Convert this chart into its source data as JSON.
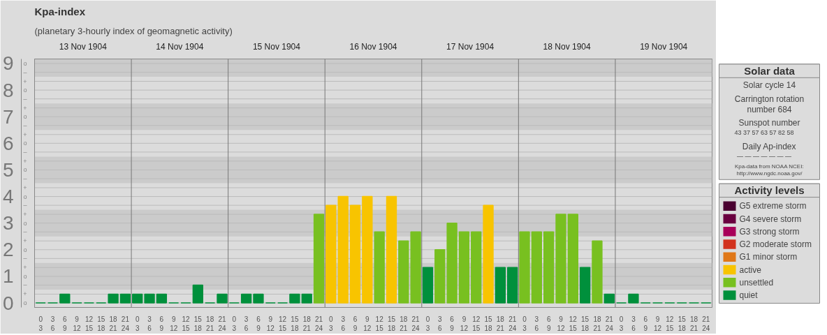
{
  "chart_data": [
    {
      "type": "bar",
      "title": "Kpa-index",
      "subtitle": "(planetary 3-hourly index of geomagnetic activity)",
      "categories": [
        "0\n3",
        "3\n6",
        "6\n9",
        "9\n12",
        "12\n15",
        "15\n18",
        "18\n21",
        "21\n24",
        "0\n3",
        "3\n6",
        "6\n9",
        "9\n12",
        "12\n15",
        "15\n18",
        "18\n21",
        "21\n24",
        "0\n3",
        "3\n6",
        "6\n9",
        "9\n12",
        "12\n15",
        "15\n18",
        "18\n21",
        "21\n24",
        "0\n3",
        "3\n6",
        "6\n9",
        "9\n12",
        "12\n15",
        "15\n18",
        "18\n21",
        "21\n24",
        "0\n3",
        "3\n6",
        "6\n9",
        "9\n12",
        "12\n15",
        "15\n18",
        "18\n21",
        "21\n24",
        "0\n3",
        "3\n6",
        "6\n9",
        "9\n12",
        "12\n15",
        "15\n18",
        "18\n21",
        "21\n24",
        "0\n3",
        "3\n6",
        "6\n9",
        "9\n12",
        "12\n15",
        "15\n18",
        "18\n21",
        "21\n24"
      ],
      "annotations": [
        "13 Nov 1904",
        "14 Nov 1904",
        "15 Nov 1904",
        "16 Nov 1904",
        "17 Nov 1904",
        "18 Nov 1904",
        "19 Nov 1904"
      ],
      "ref_lines": [
        {
          "axis": "y",
          "value": 0,
          "label": "o"
        },
        {
          "axis": "y",
          "value": 0.33,
          "label": "+"
        },
        {
          "axis": "y",
          "value": 0.67,
          "label": "–"
        },
        {
          "axis": "y",
          "value": 1,
          "label": "o"
        },
        {
          "axis": "y",
          "value": 1.33,
          "label": "+"
        },
        {
          "axis": "y",
          "value": 1.67,
          "label": "–"
        },
        {
          "axis": "y",
          "value": 2,
          "label": "o"
        },
        {
          "axis": "y",
          "value": 2.33,
          "label": "+"
        },
        {
          "axis": "y",
          "value": 2.67,
          "label": "–"
        },
        {
          "axis": "y",
          "value": 3,
          "label": "o"
        },
        {
          "axis": "y",
          "value": 3.33,
          "label": "+"
        },
        {
          "axis": "y",
          "value": 3.67,
          "label": "–"
        },
        {
          "axis": "y",
          "value": 4,
          "label": "o"
        },
        {
          "axis": "y",
          "value": 4.33,
          "label": "+"
        },
        {
          "axis": "y",
          "value": 4.67,
          "label": "–"
        },
        {
          "axis": "y",
          "value": 5,
          "label": "o"
        },
        {
          "axis": "y",
          "value": 5.33,
          "label": "+"
        },
        {
          "axis": "y",
          "value": 5.67,
          "label": "–"
        },
        {
          "axis": "y",
          "value": 6,
          "label": "o"
        },
        {
          "axis": "y",
          "value": 6.33,
          "label": "+"
        },
        {
          "axis": "y",
          "value": 6.67,
          "label": "–"
        },
        {
          "axis": "y",
          "value": 7,
          "label": "o"
        },
        {
          "axis": "y",
          "value": 7.33,
          "label": "+"
        },
        {
          "axis": "y",
          "value": 7.67,
          "label": "–"
        },
        {
          "axis": "y",
          "value": 8,
          "label": "o"
        },
        {
          "axis": "y",
          "value": 8.33,
          "label": "+"
        },
        {
          "axis": "y",
          "value": 8.67,
          "label": "–"
        },
        {
          "axis": "y",
          "value": 9,
          "label": "o"
        }
      ],
      "legend_title": "Activity levels",
      "legend": "right",
      "ylim": [
        -0.17,
        9.17
      ],
      "yticks": [
        0,
        1,
        2,
        3,
        4,
        5,
        6,
        7,
        8,
        9
      ],
      "bands": [
        {
          "axis": "y",
          "from": 0.5,
          "to": 1.5,
          "color": "#cbcbcb"
        },
        {
          "axis": "y",
          "from": 2.5,
          "to": 3.5,
          "color": "#cbcbcb"
        },
        {
          "axis": "y",
          "from": 4.5,
          "to": 5.5,
          "color": "#cbcbcb"
        },
        {
          "axis": "y",
          "from": 6.5,
          "to": 7.5,
          "color": "#cbcbcb"
        },
        {
          "axis": "y",
          "from": 8.5,
          "to": 9.17,
          "color": "#cbcbcb"
        }
      ],
      "series": [
        {
          "name": "G5 extreme storm",
          "color": "#4a0030",
          "values": [
            null,
            null,
            null,
            null,
            null,
            null,
            null,
            null,
            null,
            null,
            null,
            null,
            null,
            null,
            null,
            null,
            null,
            null,
            null,
            null,
            null,
            null,
            null,
            null,
            null,
            null,
            null,
            null,
            null,
            null,
            null,
            null,
            null,
            null,
            null,
            null,
            null,
            null,
            null,
            null,
            null,
            null,
            null,
            null,
            null,
            null,
            null,
            null,
            null,
            null,
            null,
            null,
            null,
            null,
            null,
            null
          ]
        },
        {
          "name": "G4 severe storm",
          "color": "#6a0040",
          "values": [
            null,
            null,
            null,
            null,
            null,
            null,
            null,
            null,
            null,
            null,
            null,
            null,
            null,
            null,
            null,
            null,
            null,
            null,
            null,
            null,
            null,
            null,
            null,
            null,
            null,
            null,
            null,
            null,
            null,
            null,
            null,
            null,
            null,
            null,
            null,
            null,
            null,
            null,
            null,
            null,
            null,
            null,
            null,
            null,
            null,
            null,
            null,
            null,
            null,
            null,
            null,
            null,
            null,
            null,
            null,
            null
          ]
        },
        {
          "name": "G3 strong storm",
          "color": "#a8005a",
          "values": [
            null,
            null,
            null,
            null,
            null,
            null,
            null,
            null,
            null,
            null,
            null,
            null,
            null,
            null,
            null,
            null,
            null,
            null,
            null,
            null,
            null,
            null,
            null,
            null,
            null,
            null,
            null,
            null,
            null,
            null,
            null,
            null,
            null,
            null,
            null,
            null,
            null,
            null,
            null,
            null,
            null,
            null,
            null,
            null,
            null,
            null,
            null,
            null,
            null,
            null,
            null,
            null,
            null,
            null,
            null,
            null
          ]
        },
        {
          "name": "G2 moderate storm",
          "color": "#d2321e",
          "values": [
            null,
            null,
            null,
            null,
            null,
            null,
            null,
            null,
            null,
            null,
            null,
            null,
            null,
            null,
            null,
            null,
            null,
            null,
            null,
            null,
            null,
            null,
            null,
            null,
            null,
            null,
            null,
            null,
            null,
            null,
            null,
            null,
            null,
            null,
            null,
            null,
            null,
            null,
            null,
            null,
            null,
            null,
            null,
            null,
            null,
            null,
            null,
            null,
            null,
            null,
            null,
            null,
            null,
            null,
            null,
            null
          ]
        },
        {
          "name": "G1 minor storm",
          "color": "#e07818",
          "values": [
            null,
            null,
            null,
            null,
            null,
            null,
            null,
            null,
            null,
            null,
            null,
            null,
            null,
            null,
            null,
            null,
            null,
            null,
            null,
            null,
            null,
            null,
            null,
            null,
            null,
            null,
            null,
            null,
            null,
            null,
            null,
            null,
            null,
            null,
            null,
            null,
            null,
            null,
            null,
            null,
            null,
            null,
            null,
            null,
            null,
            null,
            null,
            null,
            null,
            null,
            null,
            null,
            null,
            null,
            null,
            null
          ]
        },
        {
          "name": "active",
          "color": "#f8c400",
          "values": [
            null,
            null,
            null,
            null,
            null,
            null,
            null,
            null,
            null,
            null,
            null,
            null,
            null,
            null,
            null,
            null,
            null,
            null,
            null,
            null,
            null,
            null,
            null,
            null,
            3.67,
            4,
            3.67,
            4,
            null,
            4,
            null,
            null,
            null,
            null,
            null,
            null,
            null,
            3.67,
            null,
            null,
            null,
            null,
            null,
            null,
            null,
            null,
            null,
            null,
            null,
            null,
            null,
            null,
            null,
            null,
            null,
            null
          ]
        },
        {
          "name": "unsettled",
          "color": "#78c020",
          "values": [
            null,
            null,
            null,
            null,
            null,
            null,
            null,
            null,
            null,
            null,
            null,
            null,
            null,
            null,
            null,
            null,
            null,
            null,
            null,
            null,
            null,
            null,
            null,
            3.33,
            null,
            null,
            null,
            null,
            2.67,
            null,
            2.33,
            2.67,
            null,
            2,
            3,
            2.67,
            2.67,
            null,
            null,
            null,
            2.67,
            2.67,
            2.67,
            3.33,
            3.33,
            null,
            2.33,
            null,
            null,
            null,
            null,
            null,
            null,
            null,
            null,
            null
          ]
        },
        {
          "name": "quiet",
          "color": "#00903c",
          "values": [
            0,
            0,
            0.33,
            0,
            0,
            0,
            0.33,
            0.33,
            0.33,
            0.33,
            0.33,
            0,
            0,
            0.67,
            0,
            0.33,
            0,
            0.33,
            0.33,
            0,
            0,
            0.33,
            0.33,
            null,
            null,
            null,
            null,
            null,
            null,
            null,
            null,
            null,
            1.33,
            null,
            null,
            null,
            null,
            null,
            1.33,
            1.33,
            null,
            null,
            null,
            null,
            null,
            1.33,
            null,
            0.33,
            0,
            0.33,
            0,
            0,
            0,
            0,
            0,
            0
          ]
        }
      ]
    },
    {
      "type": "other",
      "title": "Solar data",
      "annotations": [
        "Solar cycle 14",
        "Carrington rotation number 684",
        "Sunspot number",
        "43  37  57  63  57  82  58",
        "Daily Ap-index",
        "—  —  —  —  —  —  —",
        "Kpa-data from NOAA NCEI: http://www.ngdc.noaa.gov/"
      ]
    }
  ]
}
